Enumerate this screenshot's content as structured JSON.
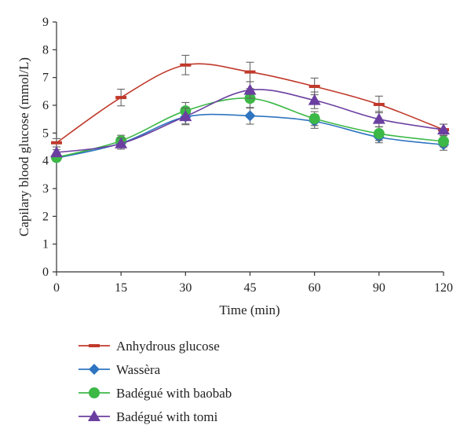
{
  "chart_data": {
    "type": "line",
    "xlabel": "Time (min)",
    "ylabel": "Capilary blood glucose (mmol/L)",
    "categories": [
      "0",
      "15",
      "30",
      "45",
      "60",
      "90",
      "120"
    ],
    "ylim": [
      0,
      9
    ],
    "yticks": [
      0,
      1,
      2,
      3,
      4,
      5,
      6,
      7,
      8,
      9
    ],
    "grid": false,
    "legend_position": "bottom",
    "smooth": true,
    "series": [
      {
        "name": "Anhydrous glucose",
        "color": "#c0392b",
        "marker": "dash",
        "values": [
          4.65,
          6.28,
          7.45,
          7.2,
          6.68,
          6.03,
          5.12
        ],
        "errors": [
          0.15,
          0.3,
          0.35,
          0.35,
          0.3,
          0.3,
          0.2
        ]
      },
      {
        "name": "Wassèra",
        "color": "#2e74c0",
        "marker": "diamond",
        "values": [
          4.1,
          4.63,
          5.58,
          5.62,
          5.42,
          4.85,
          4.58
        ],
        "errors": [
          0.12,
          0.15,
          0.25,
          0.3,
          0.25,
          0.2,
          0.2
        ]
      },
      {
        "name": "Badégué with baobab",
        "color": "#3cb846",
        "marker": "circle",
        "values": [
          4.12,
          4.72,
          5.8,
          6.25,
          5.52,
          4.98,
          4.7
        ],
        "errors": [
          0.12,
          0.2,
          0.3,
          0.35,
          0.25,
          0.25,
          0.2
        ]
      },
      {
        "name": "Badégué with tomi",
        "color": "#6b3fa0",
        "marker": "triangle",
        "values": [
          4.3,
          4.62,
          5.6,
          6.55,
          6.18,
          5.5,
          5.12
        ],
        "errors": [
          0.1,
          0.2,
          0.3,
          0.3,
          0.3,
          0.28,
          0.2
        ]
      }
    ]
  }
}
